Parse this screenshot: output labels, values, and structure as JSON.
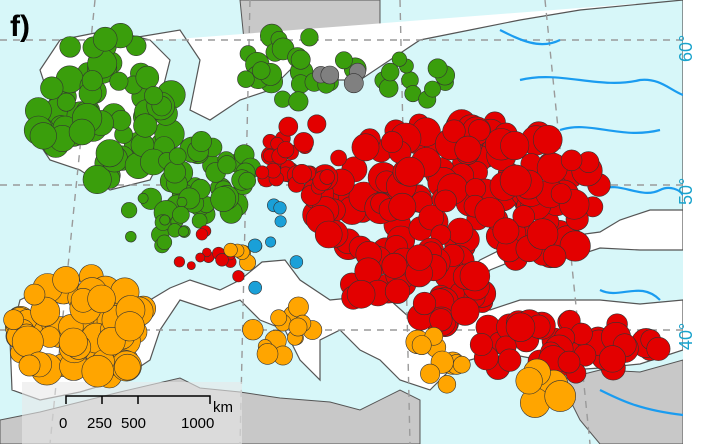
{
  "panel": {
    "label": "f)"
  },
  "latitude_labels": [
    {
      "text": "60°",
      "value": 60
    },
    {
      "text": "50°",
      "value": 50
    },
    {
      "text": "40°",
      "value": 40
    }
  ],
  "scale_bar": {
    "ticks": [
      "0",
      "250",
      "500",
      "1000"
    ],
    "unit": "km"
  },
  "colors": {
    "sea": "#d7f7f9",
    "land": "#ffffff",
    "outside_land": "#c8c8c8",
    "coast": "#555555",
    "rivers": "#1a9cf0",
    "graticule": "#9a9a9a",
    "marker_green": "#3a9e0c",
    "marker_red": "#e30000",
    "marker_orange": "#ffa500",
    "marker_grey": "#808080",
    "marker_blue": "#1aa0d8"
  },
  "legend_semantics": {
    "green": "cluster-green",
    "red": "cluster-red",
    "orange": "cluster-orange",
    "grey": "cluster-grey",
    "blue": "cluster-blue"
  }
}
